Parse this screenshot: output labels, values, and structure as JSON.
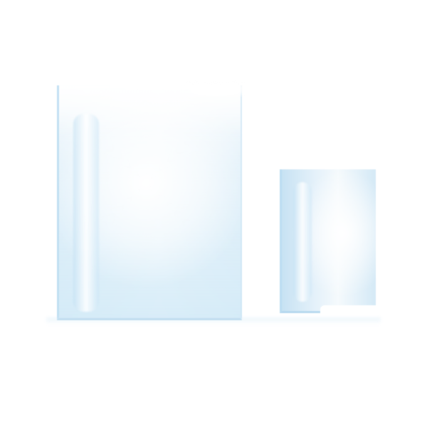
{
  "scene": {
    "background_color": "#ffffff",
    "panel_color": "#cfe6f5",
    "highlight_color": "#ffffff",
    "panels": [
      {
        "name": "tall-glass-panel"
      },
      {
        "name": "short-glass-panel"
      }
    ]
  }
}
